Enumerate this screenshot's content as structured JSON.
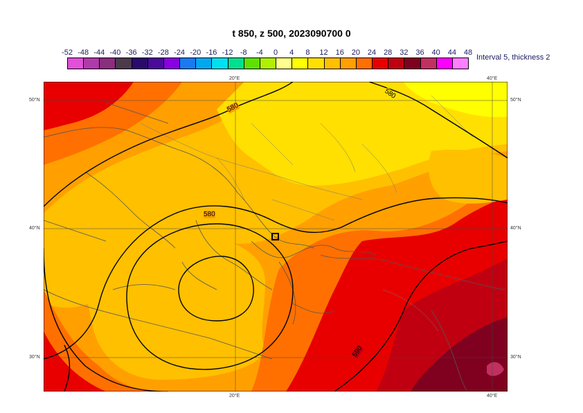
{
  "title": "t 850, z 500, 2023090700 0",
  "colorbar": {
    "labels": [
      "-52",
      "-48",
      "-44",
      "-40",
      "-36",
      "-32",
      "-28",
      "-24",
      "-20",
      "-16",
      "-12",
      "-8",
      "-4",
      "0",
      "4",
      "8",
      "12",
      "16",
      "20",
      "24",
      "28",
      "32",
      "36",
      "40",
      "44",
      "48"
    ],
    "colors": [
      "#e24fd9",
      "#b03aaa",
      "#8a2e7e",
      "#4a3a4a",
      "#2a0a6a",
      "#4a0a9a",
      "#8a00e0",
      "#1a7af0",
      "#00a8f0",
      "#00e0f0",
      "#00e090",
      "#60e000",
      "#b0f000",
      "#ffff90",
      "#ffff00",
      "#ffe000",
      "#ffc000",
      "#ffa000",
      "#ff7000",
      "#e80000",
      "#c00010",
      "#800020",
      "#c03060",
      "#ff00ff",
      "#ff80ff"
    ],
    "note": "Interval 5, thickness 2"
  },
  "axes": {
    "lon_ticks": [
      "20°E",
      "40°E"
    ],
    "lat_ticks": [
      "50°N",
      "40°N",
      "30°N"
    ]
  },
  "contours": {
    "labels": [
      "580",
      "580",
      "580",
      "590"
    ]
  }
}
